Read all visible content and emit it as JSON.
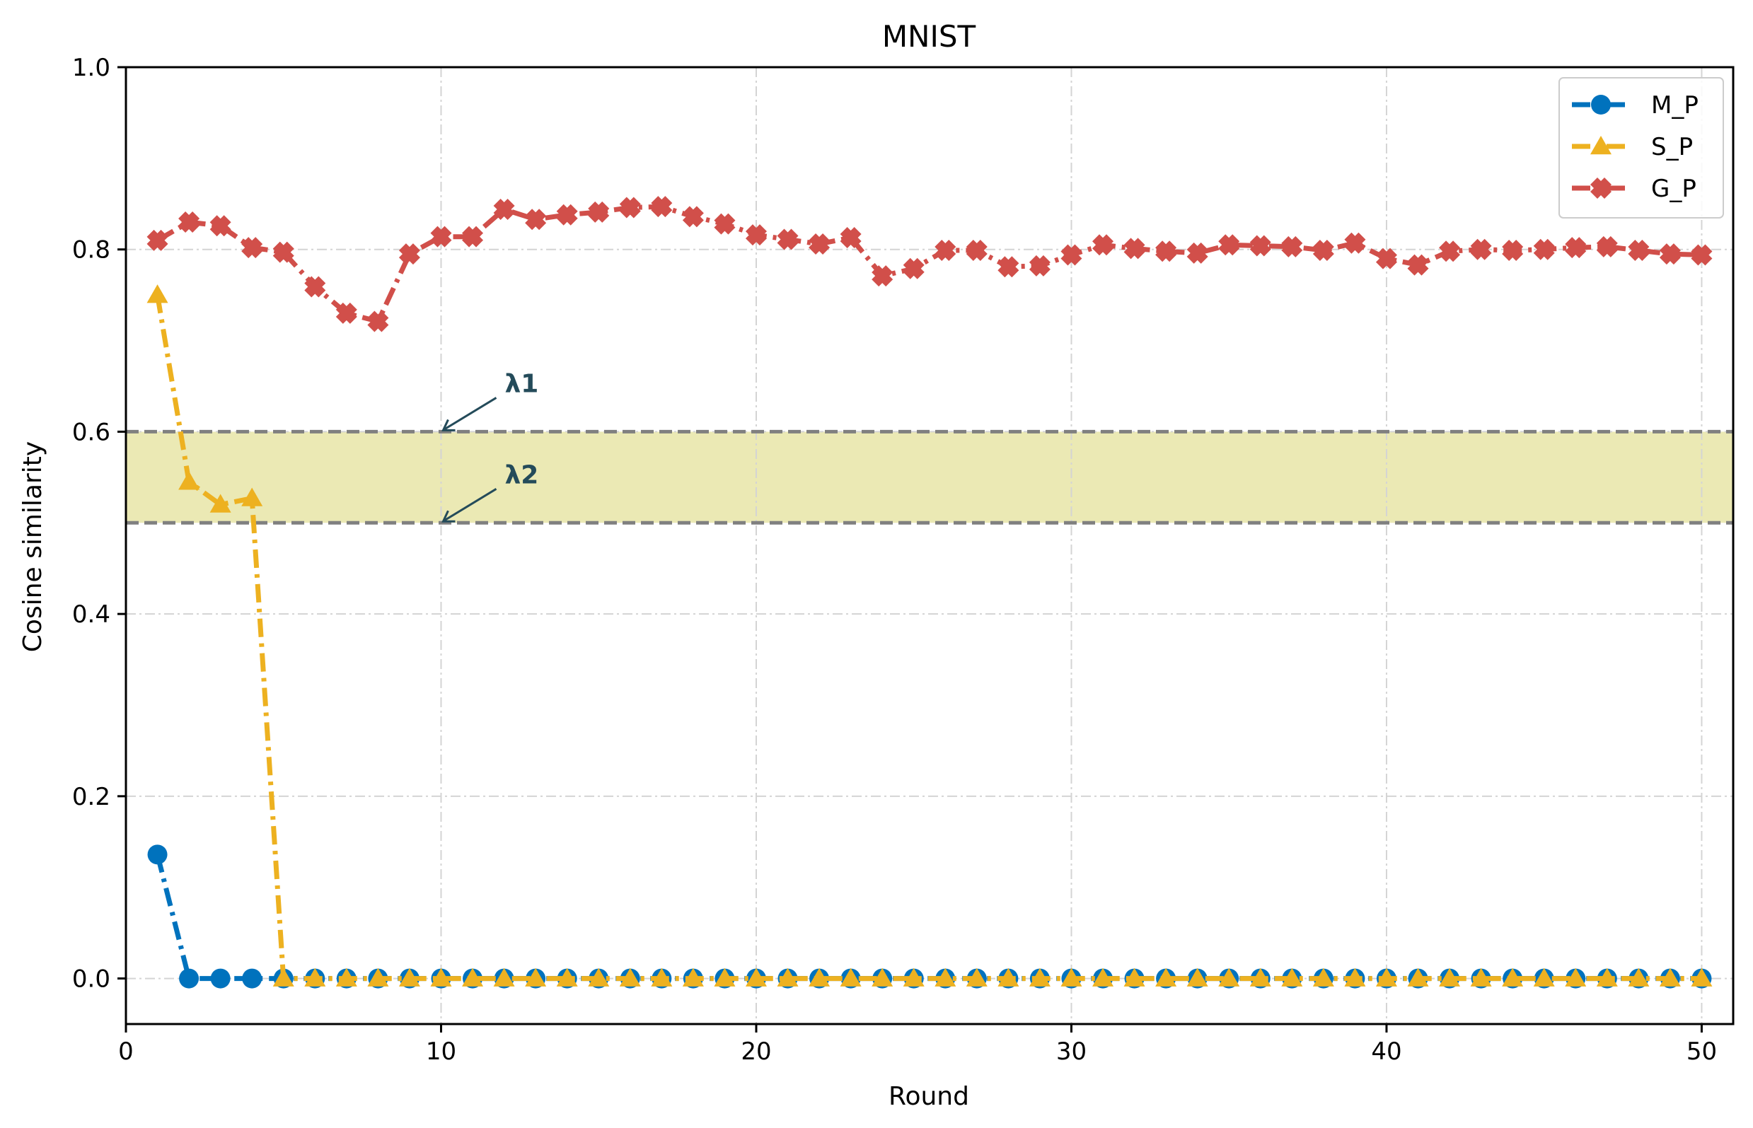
{
  "chart_data": {
    "type": "line",
    "title": "MNIST",
    "xlabel": "Round",
    "ylabel": "Cosine similarity",
    "xlim": [
      0,
      51
    ],
    "ylim": [
      -0.05,
      1.0
    ],
    "xticks": [
      0,
      10,
      20,
      30,
      40,
      50
    ],
    "yticks": [
      0.0,
      0.2,
      0.4,
      0.6,
      0.8,
      1.0
    ],
    "xtick_labels": [
      "0",
      "10",
      "20",
      "30",
      "40",
      "50"
    ],
    "ytick_labels": [
      "0.0",
      "0.2",
      "0.4",
      "0.6",
      "0.8",
      "1.0"
    ],
    "grid": true,
    "legend_position": "top-right",
    "band": {
      "low": 0.5,
      "high": 0.6,
      "color": "#ebe9b4"
    },
    "thresholds": [
      {
        "label": "λ1",
        "value": 0.6,
        "arrow_x": 10
      },
      {
        "label": "λ2",
        "value": 0.5,
        "arrow_x": 10
      }
    ],
    "annotation_color": "#244b5a",
    "series": [
      {
        "name": "M_P",
        "color": "#0072bd",
        "marker": "circle",
        "x": [
          1,
          2,
          3,
          4,
          5,
          6,
          7,
          8,
          9,
          10,
          11,
          12,
          13,
          14,
          15,
          16,
          17,
          18,
          19,
          20,
          21,
          22,
          23,
          24,
          25,
          26,
          27,
          28,
          29,
          30,
          31,
          32,
          33,
          34,
          35,
          36,
          37,
          38,
          39,
          40,
          41,
          42,
          43,
          44,
          45,
          46,
          47,
          48,
          49,
          50
        ],
        "values": [
          0.136,
          0,
          0,
          0,
          0,
          0,
          0,
          0,
          0,
          0,
          0,
          0,
          0,
          0,
          0,
          0,
          0,
          0,
          0,
          0,
          0,
          0,
          0,
          0,
          0,
          0,
          0,
          0,
          0,
          0,
          0,
          0,
          0,
          0,
          0,
          0,
          0,
          0,
          0,
          0,
          0,
          0,
          0,
          0,
          0,
          0,
          0,
          0,
          0,
          0
        ]
      },
      {
        "name": "S_P",
        "color": "#edb120",
        "marker": "triangle",
        "x": [
          1,
          2,
          3,
          4,
          5,
          6,
          7,
          8,
          9,
          10,
          11,
          12,
          13,
          14,
          15,
          16,
          17,
          18,
          19,
          20,
          21,
          22,
          23,
          24,
          25,
          26,
          27,
          28,
          29,
          30,
          31,
          32,
          33,
          34,
          35,
          36,
          37,
          38,
          39,
          40,
          41,
          42,
          43,
          44,
          45,
          46,
          47,
          48,
          49,
          50
        ],
        "values": [
          0.75,
          0.545,
          0.52,
          0.527,
          0,
          0,
          0,
          0,
          0,
          0,
          0,
          0,
          0,
          0,
          0,
          0,
          0,
          0,
          0,
          0,
          0,
          0,
          0,
          0,
          0,
          0,
          0,
          0,
          0,
          0,
          0,
          0,
          0,
          0,
          0,
          0,
          0,
          0,
          0,
          0,
          0,
          0,
          0,
          0,
          0,
          0,
          0,
          0,
          0,
          0
        ]
      },
      {
        "name": "G_P",
        "color": "#d14f4a",
        "marker": "x",
        "x": [
          1,
          2,
          3,
          4,
          5,
          6,
          7,
          8,
          9,
          10,
          11,
          12,
          13,
          14,
          15,
          16,
          17,
          18,
          19,
          20,
          21,
          22,
          23,
          24,
          25,
          26,
          27,
          28,
          29,
          30,
          31,
          32,
          33,
          34,
          35,
          36,
          37,
          38,
          39,
          40,
          41,
          42,
          43,
          44,
          45,
          46,
          47,
          48,
          49,
          50
        ],
        "values": [
          0.81,
          0.83,
          0.826,
          0.802,
          0.797,
          0.759,
          0.73,
          0.721,
          0.795,
          0.814,
          0.814,
          0.844,
          0.833,
          0.838,
          0.841,
          0.846,
          0.847,
          0.836,
          0.828,
          0.816,
          0.811,
          0.806,
          0.813,
          0.771,
          0.779,
          0.799,
          0.799,
          0.781,
          0.782,
          0.794,
          0.805,
          0.801,
          0.798,
          0.796,
          0.805,
          0.804,
          0.803,
          0.799,
          0.807,
          0.79,
          0.783,
          0.798,
          0.8,
          0.799,
          0.8,
          0.802,
          0.803,
          0.799,
          0.795,
          0.794
        ]
      }
    ]
  }
}
